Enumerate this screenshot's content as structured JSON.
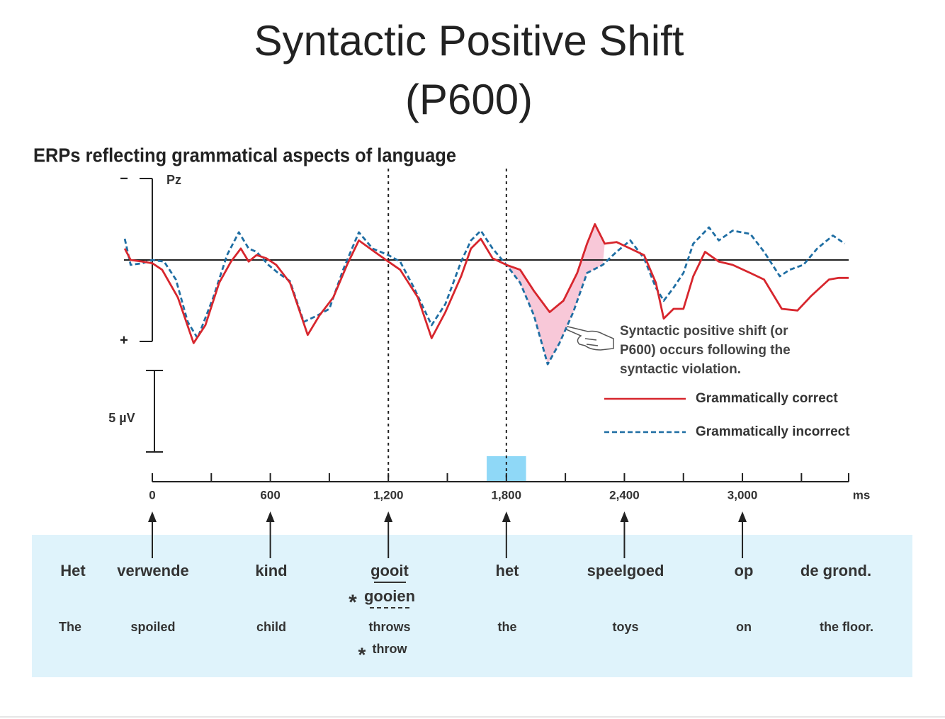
{
  "chart_data": {
    "type": "line",
    "title": [
      "Syntactic Positive Shift",
      "(P600)"
    ],
    "subtitle": "ERPs reflecting grammatical aspects of language",
    "electrode": "Pz",
    "y_pole_labels": [
      "−",
      "+"
    ],
    "y_negative_up": true,
    "ylim": [
      -5,
      5
    ],
    "xlim": [
      -144,
      3540
    ],
    "xaxis_end": 3540,
    "x_label": "ms",
    "xticks": [
      0,
      600,
      {
        "value": 1200,
        "label": "1,200"
      },
      {
        "value": 1800,
        "label": "1,800"
      },
      {
        "value": 2400,
        "label": "2,400"
      },
      {
        "value": 3000,
        "label": "3,000"
      }
    ],
    "x_minor_ticks": [
      300,
      900,
      1500,
      2100,
      2700,
      3300
    ],
    "dashed_markers": [
      1200,
      1800
    ],
    "onset_box": [
      1700,
      1900
    ],
    "shaded_range": [
      1750,
      2300
    ],
    "shade_color": "#f8c8d8",
    "scale_bar": {
      "value": 5,
      "label": "5 µV"
    },
    "annotation": [
      "Syntactic positive shift (or",
      "P600) occurs following the",
      "syntactic violation."
    ],
    "series": [
      {
        "name": "Grammatically correct",
        "color": "#d7262d",
        "dash": false,
        "x": [
          -140,
          -110,
          -50,
          0,
          50,
          130,
          210,
          270,
          340,
          400,
          450,
          490,
          530,
          580,
          630,
          700,
          790,
          850,
          920,
          990,
          1050,
          1130,
          1200,
          1260,
          1350,
          1420,
          1490,
          1570,
          1620,
          1670,
          1730,
          1800,
          1870,
          1940,
          2020,
          2090,
          2160,
          2210,
          2250,
          2300,
          2360,
          2430,
          2500,
          2560,
          2600,
          2650,
          2700,
          2750,
          2810,
          2880,
          2950,
          3040,
          3110,
          3200,
          3280,
          3350,
          3440,
          3490,
          3540
        ],
        "values": [
          -0.7,
          0.0,
          0.1,
          0.2,
          0.6,
          2.3,
          5.1,
          4.0,
          1.4,
          0.1,
          -0.7,
          0.1,
          -0.3,
          -0.1,
          0.3,
          1.4,
          4.6,
          3.4,
          2.3,
          0.3,
          -1.2,
          -0.5,
          0.1,
          0.6,
          2.3,
          4.8,
          3.2,
          1.0,
          -0.7,
          -1.3,
          -0.1,
          0.3,
          0.6,
          1.9,
          3.2,
          2.5,
          0.8,
          -1.0,
          -2.2,
          -1.0,
          -1.1,
          -0.7,
          -0.3,
          1.4,
          3.6,
          3.0,
          3.0,
          1.0,
          -0.5,
          0.1,
          0.3,
          0.8,
          1.2,
          3.0,
          3.1,
          2.2,
          1.2,
          1.1,
          1.1
        ]
      },
      {
        "name": "Grammatically incorrect",
        "color": "#1f6ea3",
        "dash": true,
        "x": [
          -140,
          -110,
          -50,
          0,
          60,
          120,
          180,
          230,
          310,
          380,
          440,
          490,
          530,
          590,
          640,
          700,
          770,
          840,
          900,
          970,
          1050,
          1120,
          1200,
          1260,
          1330,
          1420,
          1490,
          1570,
          1620,
          1670,
          1730,
          1800,
          1870,
          1940,
          2010,
          2070,
          2140,
          2210,
          2290,
          2360,
          2430,
          2500,
          2560,
          2600,
          2650,
          2700,
          2750,
          2830,
          2880,
          2950,
          3040,
          3110,
          3190,
          3240,
          3310,
          3380,
          3460,
          3520
        ],
        "values": [
          -1.3,
          0.3,
          0.2,
          0.0,
          0.1,
          1.2,
          3.8,
          4.8,
          2.3,
          -0.3,
          -1.7,
          -0.7,
          -0.5,
          0.3,
          0.8,
          1.3,
          3.8,
          3.4,
          3.0,
          0.6,
          -1.7,
          -0.7,
          -0.3,
          0.1,
          1.7,
          4.0,
          2.7,
          0.1,
          -1.2,
          -1.8,
          -0.7,
          0.3,
          1.4,
          3.4,
          6.4,
          5.1,
          3.2,
          0.8,
          0.3,
          -0.5,
          -1.2,
          -0.1,
          1.7,
          2.5,
          1.7,
          0.8,
          -1.0,
          -2.0,
          -1.2,
          -1.8,
          -1.6,
          -0.5,
          1.0,
          0.6,
          0.3,
          -0.7,
          -1.5,
          -1.0
        ]
      }
    ],
    "sentence": {
      "dutch": [
        "Het",
        "verwende",
        "kind",
        "gooit",
        "het",
        "speelgoed",
        "op",
        "de grond."
      ],
      "english": [
        "The",
        "spoiled",
        "child",
        "throws",
        "the",
        "toys",
        "on",
        "the floor."
      ],
      "violation_marker": "*",
      "violation_dutch": "gooien",
      "violation_english": "throw"
    }
  }
}
